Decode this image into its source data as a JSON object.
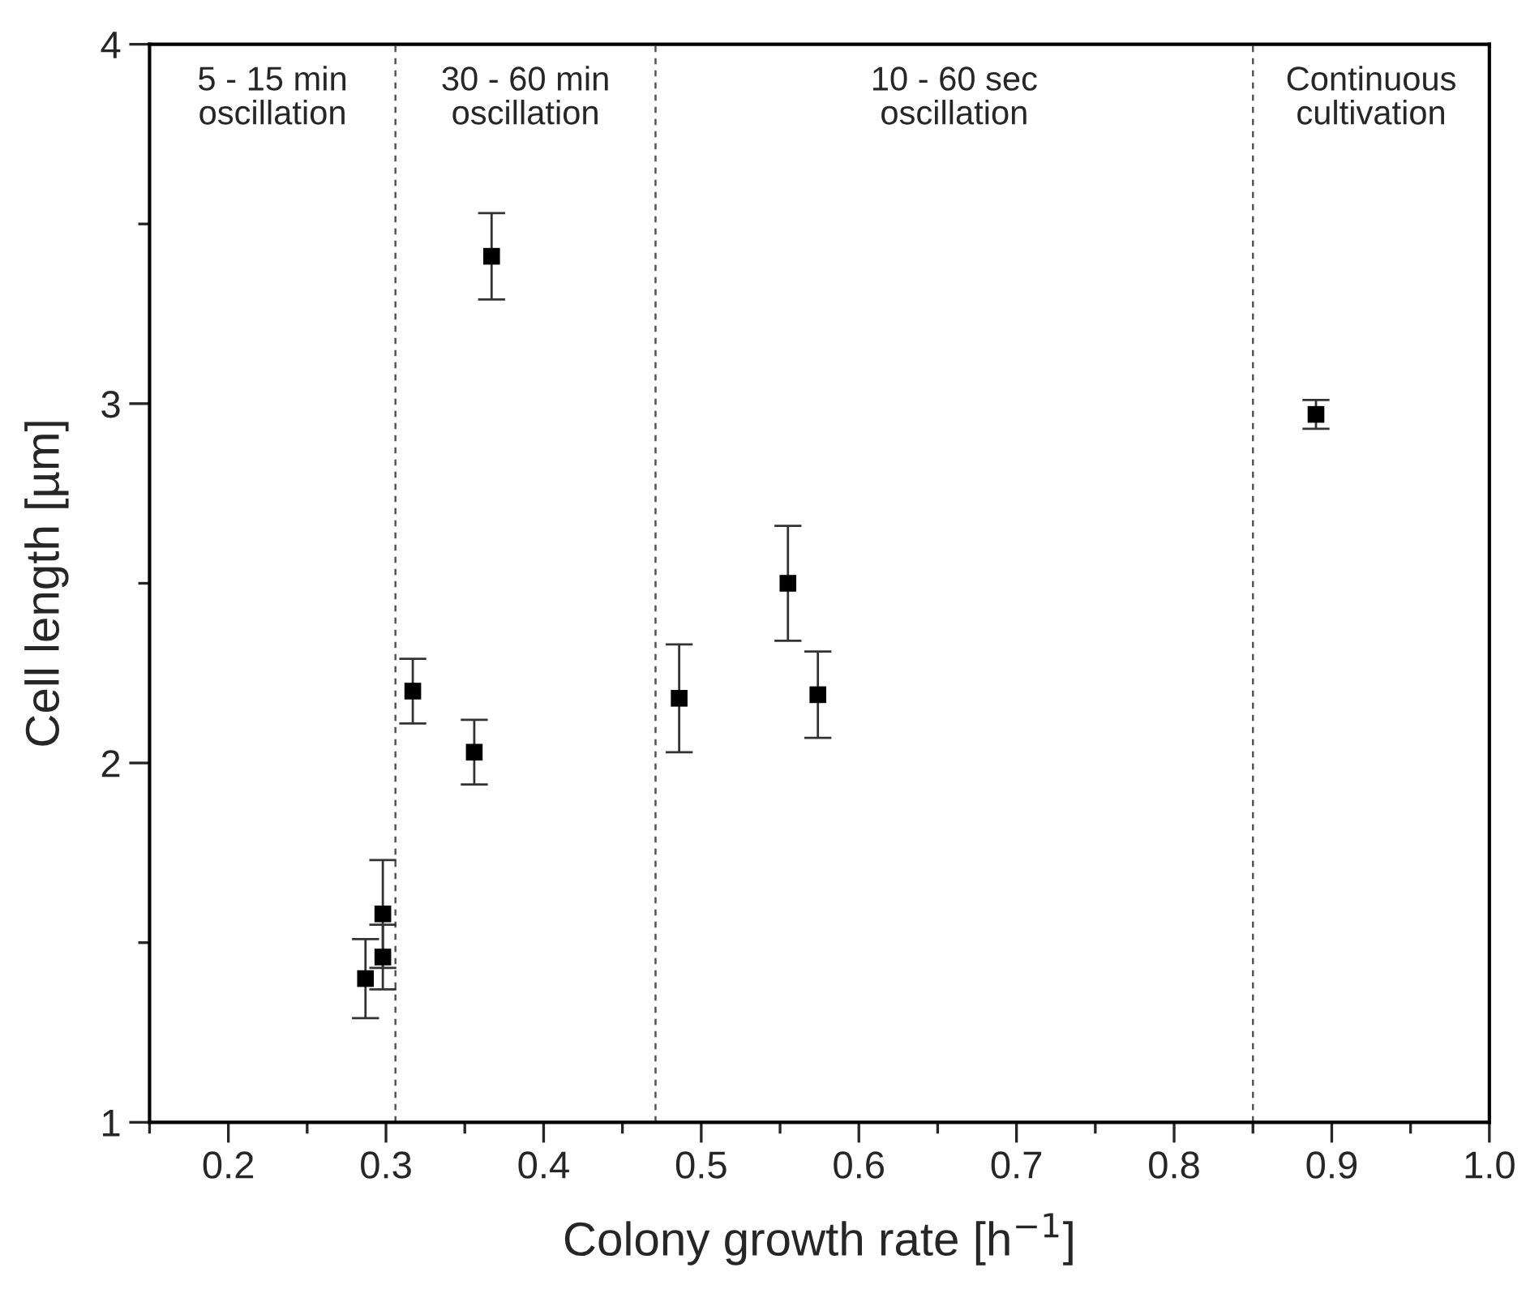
{
  "chart_data": {
    "type": "scatter",
    "xlabel": "Colony growth rate [h$^{−1}$]",
    "ylabel": "Cell length [µm]",
    "x": [
      0.287,
      0.298,
      0.298,
      0.317,
      0.356,
      0.367,
      0.486,
      0.555,
      0.574,
      0.89
    ],
    "values": [
      1.4,
      1.46,
      1.58,
      2.2,
      2.03,
      3.41,
      2.18,
      2.5,
      2.19,
      2.97
    ],
    "errors": [
      0.11,
      0.09,
      0.15,
      0.09,
      0.09,
      0.12,
      0.15,
      0.16,
      0.12,
      0.04
    ],
    "color": "#000000",
    "marker": "square",
    "xlim": [
      0.15,
      1.0
    ],
    "ylim": [
      1,
      4
    ],
    "xticks": [
      {
        "value": 0.15,
        "label": null
      },
      0.2,
      {
        "value": 0.25,
        "label": null
      },
      0.3,
      {
        "value": 0.35,
        "label": null
      },
      0.4,
      {
        "value": 0.45,
        "label": null
      },
      0.5,
      {
        "value": 0.55,
        "label": null
      },
      0.6,
      {
        "value": 0.65,
        "label": null
      },
      0.7,
      {
        "value": 0.75,
        "label": null
      },
      0.8,
      {
        "value": 0.85,
        "label": null
      },
      0.9,
      {
        "value": 0.95,
        "label": null
      },
      {
        "value": 1.0,
        "label": "1.0"
      }
    ],
    "yticks": [
      1,
      {
        "value": 1.5,
        "label": null
      },
      2,
      {
        "value": 2.5,
        "label": null
      },
      3,
      {
        "value": 3.5,
        "label": null
      },
      4
    ],
    "ref_lines": [
      {
        "axis": "x",
        "value": 0.306,
        "line_style": "dashed",
        "color": "#555555"
      },
      {
        "axis": "x",
        "value": 0.471,
        "line_style": "dashed",
        "color": "#555555"
      },
      {
        "axis": "x",
        "value": 0.85,
        "line_style": "dashed",
        "color": "#555555"
      }
    ],
    "annotations": [
      "5 - 15 min\noscillation",
      "30 - 60 min\noscillation",
      "10 - 60 sec\noscillation",
      "Continuous\ncultivation"
    ],
    "grid": false,
    "legend": false
  }
}
